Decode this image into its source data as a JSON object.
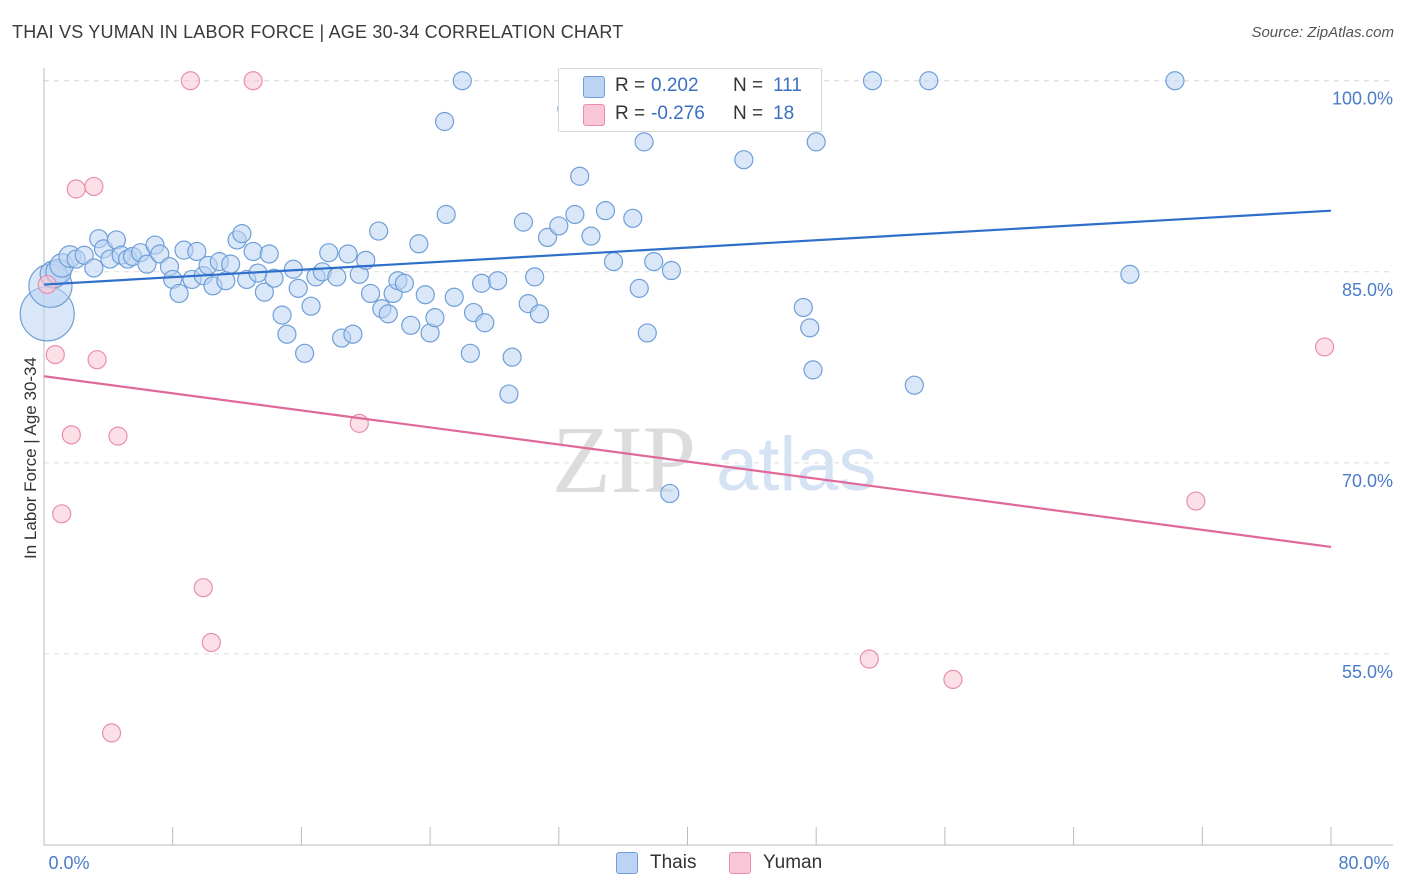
{
  "title": "THAI VS YUMAN IN LABOR FORCE | AGE 30-34 CORRELATION CHART",
  "source": "Source: ZipAtlas.com",
  "watermark": {
    "zip": "ZIP",
    "atlas": "atlas"
  },
  "legend_top": {
    "rows": [
      {
        "r_label": "R =",
        "r_value": "0.202",
        "n_label": "N =",
        "n_value": "111"
      },
      {
        "r_label": "R =",
        "r_value": "-0.276",
        "n_label": "N =",
        "n_value": "18"
      }
    ]
  },
  "legend_bottom": {
    "series_a": "Thais",
    "series_b": "Yuman"
  },
  "colors": {
    "thai_fill": "#bcd4f3",
    "thai_stroke": "#6f9fd8",
    "thai_line": "#2f6fc9",
    "yuman_fill": "#f8c6d4",
    "yuman_stroke": "#e88fab",
    "yuman_line": "#e0699a",
    "grid": "#dcdcdc",
    "tick_text": "#4a7cc9"
  },
  "chart_data": {
    "type": "scatter",
    "title": "THAI VS YUMAN IN LABOR FORCE | AGE 30-34 CORRELATION CHART",
    "xlabel": "",
    "ylabel": "In Labor Force | Age 30-34",
    "xlim": [
      0,
      80
    ],
    "ylim": [
      40,
      101
    ],
    "x_tick_labels": [
      "0.0%",
      "80.0%"
    ],
    "y_ticks": [
      55,
      70,
      85,
      100
    ],
    "y_tick_labels": [
      "55.0%",
      "70.0%",
      "85.0%",
      "100.0%"
    ],
    "grid": true,
    "series": [
      {
        "name": "Thais",
        "r": 0.202,
        "n": 111,
        "trend": {
          "x": [
            0,
            80
          ],
          "y": [
            84.0,
            89.8
          ]
        },
        "points": [
          {
            "x": 0.2,
            "y": 81.7,
            "s": 3
          },
          {
            "x": 0.4,
            "y": 83.9,
            "s": 2.4
          },
          {
            "x": 0.6,
            "y": 84.8,
            "s": 1.5
          },
          {
            "x": 0.9,
            "y": 85.0,
            "s": 1.4
          },
          {
            "x": 1.1,
            "y": 85.5,
            "s": 1.3
          },
          {
            "x": 1.6,
            "y": 86.2,
            "s": 1.2
          },
          {
            "x": 2.0,
            "y": 86.0,
            "s": 1
          },
          {
            "x": 2.5,
            "y": 86.3,
            "s": 1
          },
          {
            "x": 3.1,
            "y": 85.3,
            "s": 1
          },
          {
            "x": 3.4,
            "y": 87.6,
            "s": 1
          },
          {
            "x": 3.7,
            "y": 86.8,
            "s": 1
          },
          {
            "x": 4.1,
            "y": 86.0,
            "s": 1
          },
          {
            "x": 4.5,
            "y": 87.5,
            "s": 1
          },
          {
            "x": 4.8,
            "y": 86.3,
            "s": 1
          },
          {
            "x": 5.2,
            "y": 86.0,
            "s": 1
          },
          {
            "x": 5.5,
            "y": 86.2,
            "s": 1
          },
          {
            "x": 6.0,
            "y": 86.5,
            "s": 1
          },
          {
            "x": 6.4,
            "y": 85.6,
            "s": 1
          },
          {
            "x": 6.9,
            "y": 87.1,
            "s": 1
          },
          {
            "x": 7.2,
            "y": 86.4,
            "s": 1
          },
          {
            "x": 7.8,
            "y": 85.4,
            "s": 1
          },
          {
            "x": 8.0,
            "y": 84.4,
            "s": 1
          },
          {
            "x": 8.4,
            "y": 83.3,
            "s": 1
          },
          {
            "x": 8.7,
            "y": 86.7,
            "s": 1
          },
          {
            "x": 9.2,
            "y": 84.4,
            "s": 1
          },
          {
            "x": 9.5,
            "y": 86.6,
            "s": 1
          },
          {
            "x": 9.9,
            "y": 84.7,
            "s": 1
          },
          {
            "x": 10.2,
            "y": 85.5,
            "s": 1
          },
          {
            "x": 10.5,
            "y": 83.9,
            "s": 1
          },
          {
            "x": 10.9,
            "y": 85.8,
            "s": 1
          },
          {
            "x": 11.3,
            "y": 84.3,
            "s": 1
          },
          {
            "x": 11.6,
            "y": 85.6,
            "s": 1
          },
          {
            "x": 12.0,
            "y": 87.5,
            "s": 1
          },
          {
            "x": 12.3,
            "y": 88.0,
            "s": 1
          },
          {
            "x": 12.6,
            "y": 84.4,
            "s": 1
          },
          {
            "x": 13.0,
            "y": 86.6,
            "s": 1
          },
          {
            "x": 13.3,
            "y": 84.9,
            "s": 1
          },
          {
            "x": 13.7,
            "y": 83.4,
            "s": 1
          },
          {
            "x": 14.0,
            "y": 86.4,
            "s": 1
          },
          {
            "x": 14.3,
            "y": 84.5,
            "s": 1
          },
          {
            "x": 14.8,
            "y": 81.6,
            "s": 1
          },
          {
            "x": 15.1,
            "y": 80.1,
            "s": 1
          },
          {
            "x": 15.5,
            "y": 85.2,
            "s": 1
          },
          {
            "x": 15.8,
            "y": 83.7,
            "s": 1
          },
          {
            "x": 16.2,
            "y": 78.6,
            "s": 1
          },
          {
            "x": 16.6,
            "y": 82.3,
            "s": 1
          },
          {
            "x": 16.9,
            "y": 84.6,
            "s": 1
          },
          {
            "x": 17.3,
            "y": 85.0,
            "s": 1
          },
          {
            "x": 17.7,
            "y": 86.5,
            "s": 1
          },
          {
            "x": 18.2,
            "y": 84.6,
            "s": 1
          },
          {
            "x": 18.5,
            "y": 79.8,
            "s": 1
          },
          {
            "x": 18.9,
            "y": 86.4,
            "s": 1
          },
          {
            "x": 19.2,
            "y": 80.1,
            "s": 1
          },
          {
            "x": 19.6,
            "y": 84.8,
            "s": 1
          },
          {
            "x": 20.0,
            "y": 85.9,
            "s": 1
          },
          {
            "x": 20.3,
            "y": 83.3,
            "s": 1
          },
          {
            "x": 20.8,
            "y": 88.2,
            "s": 1
          },
          {
            "x": 21.0,
            "y": 82.1,
            "s": 1
          },
          {
            "x": 21.4,
            "y": 81.7,
            "s": 1
          },
          {
            "x": 21.7,
            "y": 83.3,
            "s": 1
          },
          {
            "x": 22.0,
            "y": 84.3,
            "s": 1
          },
          {
            "x": 22.4,
            "y": 84.1,
            "s": 1
          },
          {
            "x": 22.8,
            "y": 80.8,
            "s": 1
          },
          {
            "x": 23.3,
            "y": 87.2,
            "s": 1
          },
          {
            "x": 23.7,
            "y": 83.2,
            "s": 1
          },
          {
            "x": 24.0,
            "y": 80.2,
            "s": 1
          },
          {
            "x": 24.3,
            "y": 81.4,
            "s": 1
          },
          {
            "x": 24.9,
            "y": 96.8,
            "s": 1
          },
          {
            "x": 25.0,
            "y": 89.5,
            "s": 1
          },
          {
            "x": 25.5,
            "y": 83.0,
            "s": 1
          },
          {
            "x": 26.0,
            "y": 100.0,
            "s": 1
          },
          {
            "x": 26.5,
            "y": 78.6,
            "s": 1
          },
          {
            "x": 26.7,
            "y": 81.8,
            "s": 1
          },
          {
            "x": 27.2,
            "y": 84.1,
            "s": 1
          },
          {
            "x": 27.4,
            "y": 81.0,
            "s": 1
          },
          {
            "x": 28.2,
            "y": 84.3,
            "s": 1
          },
          {
            "x": 28.9,
            "y": 75.4,
            "s": 1
          },
          {
            "x": 29.1,
            "y": 78.3,
            "s": 1
          },
          {
            "x": 29.8,
            "y": 88.9,
            "s": 1
          },
          {
            "x": 30.1,
            "y": 82.5,
            "s": 1
          },
          {
            "x": 30.5,
            "y": 84.6,
            "s": 1
          },
          {
            "x": 30.8,
            "y": 81.7,
            "s": 1
          },
          {
            "x": 31.3,
            "y": 87.7,
            "s": 1
          },
          {
            "x": 32.0,
            "y": 88.6,
            "s": 1
          },
          {
            "x": 32.5,
            "y": 97.8,
            "s": 1
          },
          {
            "x": 33.0,
            "y": 89.5,
            "s": 1
          },
          {
            "x": 33.3,
            "y": 92.5,
            "s": 1
          },
          {
            "x": 34.0,
            "y": 87.8,
            "s": 1
          },
          {
            "x": 34.9,
            "y": 89.8,
            "s": 1
          },
          {
            "x": 35.4,
            "y": 85.8,
            "s": 1
          },
          {
            "x": 36.6,
            "y": 89.2,
            "s": 1
          },
          {
            "x": 37.0,
            "y": 83.7,
            "s": 1
          },
          {
            "x": 37.3,
            "y": 95.2,
            "s": 1
          },
          {
            "x": 37.5,
            "y": 80.2,
            "s": 1
          },
          {
            "x": 37.9,
            "y": 85.8,
            "s": 1
          },
          {
            "x": 38.9,
            "y": 67.6,
            "s": 1
          },
          {
            "x": 39.0,
            "y": 85.1,
            "s": 1
          },
          {
            "x": 41.7,
            "y": 100.0,
            "s": 1
          },
          {
            "x": 43.5,
            "y": 93.8,
            "s": 1
          },
          {
            "x": 47.2,
            "y": 82.2,
            "s": 1
          },
          {
            "x": 47.6,
            "y": 80.6,
            "s": 1
          },
          {
            "x": 47.8,
            "y": 77.3,
            "s": 1
          },
          {
            "x": 48.0,
            "y": 95.2,
            "s": 1
          },
          {
            "x": 51.5,
            "y": 100.0,
            "s": 1
          },
          {
            "x": 54.1,
            "y": 76.1,
            "s": 1
          },
          {
            "x": 55.0,
            "y": 100.0,
            "s": 1
          },
          {
            "x": 67.5,
            "y": 84.8,
            "s": 1
          },
          {
            "x": 70.3,
            "y": 100.0,
            "s": 1
          }
        ]
      },
      {
        "name": "Yuman",
        "r": -0.276,
        "n": 18,
        "trend": {
          "x": [
            0,
            80
          ],
          "y": [
            76.8,
            63.4
          ]
        },
        "points": [
          {
            "x": 0.2,
            "y": 84.0,
            "s": 1
          },
          {
            "x": 0.7,
            "y": 78.5,
            "s": 1
          },
          {
            "x": 1.1,
            "y": 66.0,
            "s": 1
          },
          {
            "x": 1.7,
            "y": 72.2,
            "s": 1
          },
          {
            "x": 2.0,
            "y": 91.5,
            "s": 1
          },
          {
            "x": 3.1,
            "y": 91.7,
            "s": 1
          },
          {
            "x": 3.3,
            "y": 78.1,
            "s": 1
          },
          {
            "x": 4.2,
            "y": 48.8,
            "s": 1
          },
          {
            "x": 4.6,
            "y": 72.1,
            "s": 1
          },
          {
            "x": 9.1,
            "y": 100.0,
            "s": 1
          },
          {
            "x": 9.9,
            "y": 60.2,
            "s": 1
          },
          {
            "x": 10.4,
            "y": 55.9,
            "s": 1
          },
          {
            "x": 13.0,
            "y": 100.0,
            "s": 1
          },
          {
            "x": 19.6,
            "y": 73.1,
            "s": 1
          },
          {
            "x": 51.3,
            "y": 54.6,
            "s": 1
          },
          {
            "x": 56.5,
            "y": 53.0,
            "s": 1
          },
          {
            "x": 71.6,
            "y": 67.0,
            "s": 1
          },
          {
            "x": 79.6,
            "y": 79.1,
            "s": 1
          }
        ]
      }
    ]
  }
}
